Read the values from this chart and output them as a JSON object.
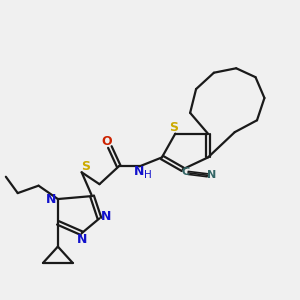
{
  "bg_color": "#f0f0f0",
  "bond_color": "#1a1a1a",
  "S_color": "#ccaa00",
  "N_color": "#1111cc",
  "O_color": "#cc2200",
  "NH_color": "#1111cc",
  "CN_color": "#336666",
  "figsize": [
    3.0,
    3.0
  ],
  "dpi": 100,
  "xlim": [
    0,
    10
  ],
  "ylim": [
    0,
    10
  ]
}
